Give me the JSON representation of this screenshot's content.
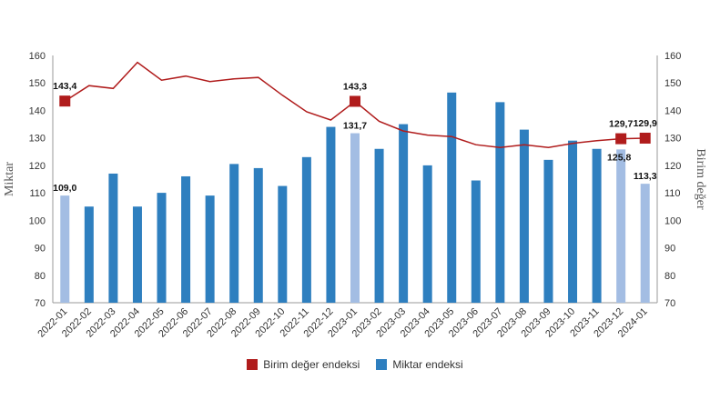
{
  "chart_data": {
    "type": "bar",
    "categories": [
      "2022-01",
      "2022-02",
      "2022-03",
      "2022-04",
      "2022-05",
      "2022-06",
      "2022-07",
      "2022-08",
      "2022-09",
      "2022-10",
      "2022-11",
      "2022-12",
      "2023-01",
      "2023-02",
      "2023-03",
      "2023-04",
      "2023-05",
      "2023-06",
      "2023-07",
      "2023-08",
      "2023-09",
      "2023-10",
      "2023-11",
      "2023-12",
      "2024-01"
    ],
    "ylabel": "Miktar",
    "y2label": "Birim değer",
    "ylim": [
      70,
      160
    ],
    "y2lim": [
      70,
      160
    ],
    "yticks": [
      "70",
      "80",
      "90",
      "100",
      "110",
      "120",
      "130",
      "140",
      "150",
      "160"
    ],
    "y2ticks": [
      "70",
      "80",
      "90",
      "100",
      "110",
      "120",
      "130",
      "140",
      "150",
      "160"
    ],
    "grid": false,
    "legend_position": "bottom",
    "series": [
      {
        "name": "Birim değer endeksi",
        "type": "line",
        "axis": "right",
        "color": "#b01c1c",
        "values": [
          143.4,
          149,
          148,
          157.5,
          151,
          152.5,
          150.5,
          151.5,
          152,
          145.5,
          139.5,
          136.5,
          143.3,
          136,
          132.5,
          131,
          130.5,
          127.5,
          126.5,
          127.5,
          126.5,
          128,
          129,
          129.7,
          129.9
        ],
        "markers": [
          0,
          12,
          23,
          24
        ]
      },
      {
        "name": "Miktar endeksi",
        "type": "bar",
        "axis": "left",
        "color": "#2e7fbf",
        "highlight_color": "#a3bde3",
        "values": [
          109.0,
          105,
          117,
          105,
          110,
          116,
          109,
          120.5,
          119,
          112.5,
          123,
          134,
          131.7,
          126,
          135,
          120,
          146.5,
          114.5,
          143,
          133,
          122,
          129,
          126,
          125.8,
          113.3
        ],
        "highlighted": [
          0,
          12,
          23,
          24
        ]
      }
    ],
    "data_labels": [
      {
        "series": 1,
        "index": 0,
        "text": "109,0"
      },
      {
        "series": 1,
        "index": 12,
        "text": "131,7"
      },
      {
        "series": 1,
        "index": 23,
        "text": "125,8"
      },
      {
        "series": 1,
        "index": 24,
        "text": "113,3"
      },
      {
        "series": 0,
        "index": 0,
        "text": "143,4"
      },
      {
        "series": 0,
        "index": 12,
        "text": "143,3"
      },
      {
        "series": 0,
        "index": 23,
        "text": "129,7"
      },
      {
        "series": 0,
        "index": 24,
        "text": "129,9"
      }
    ]
  }
}
